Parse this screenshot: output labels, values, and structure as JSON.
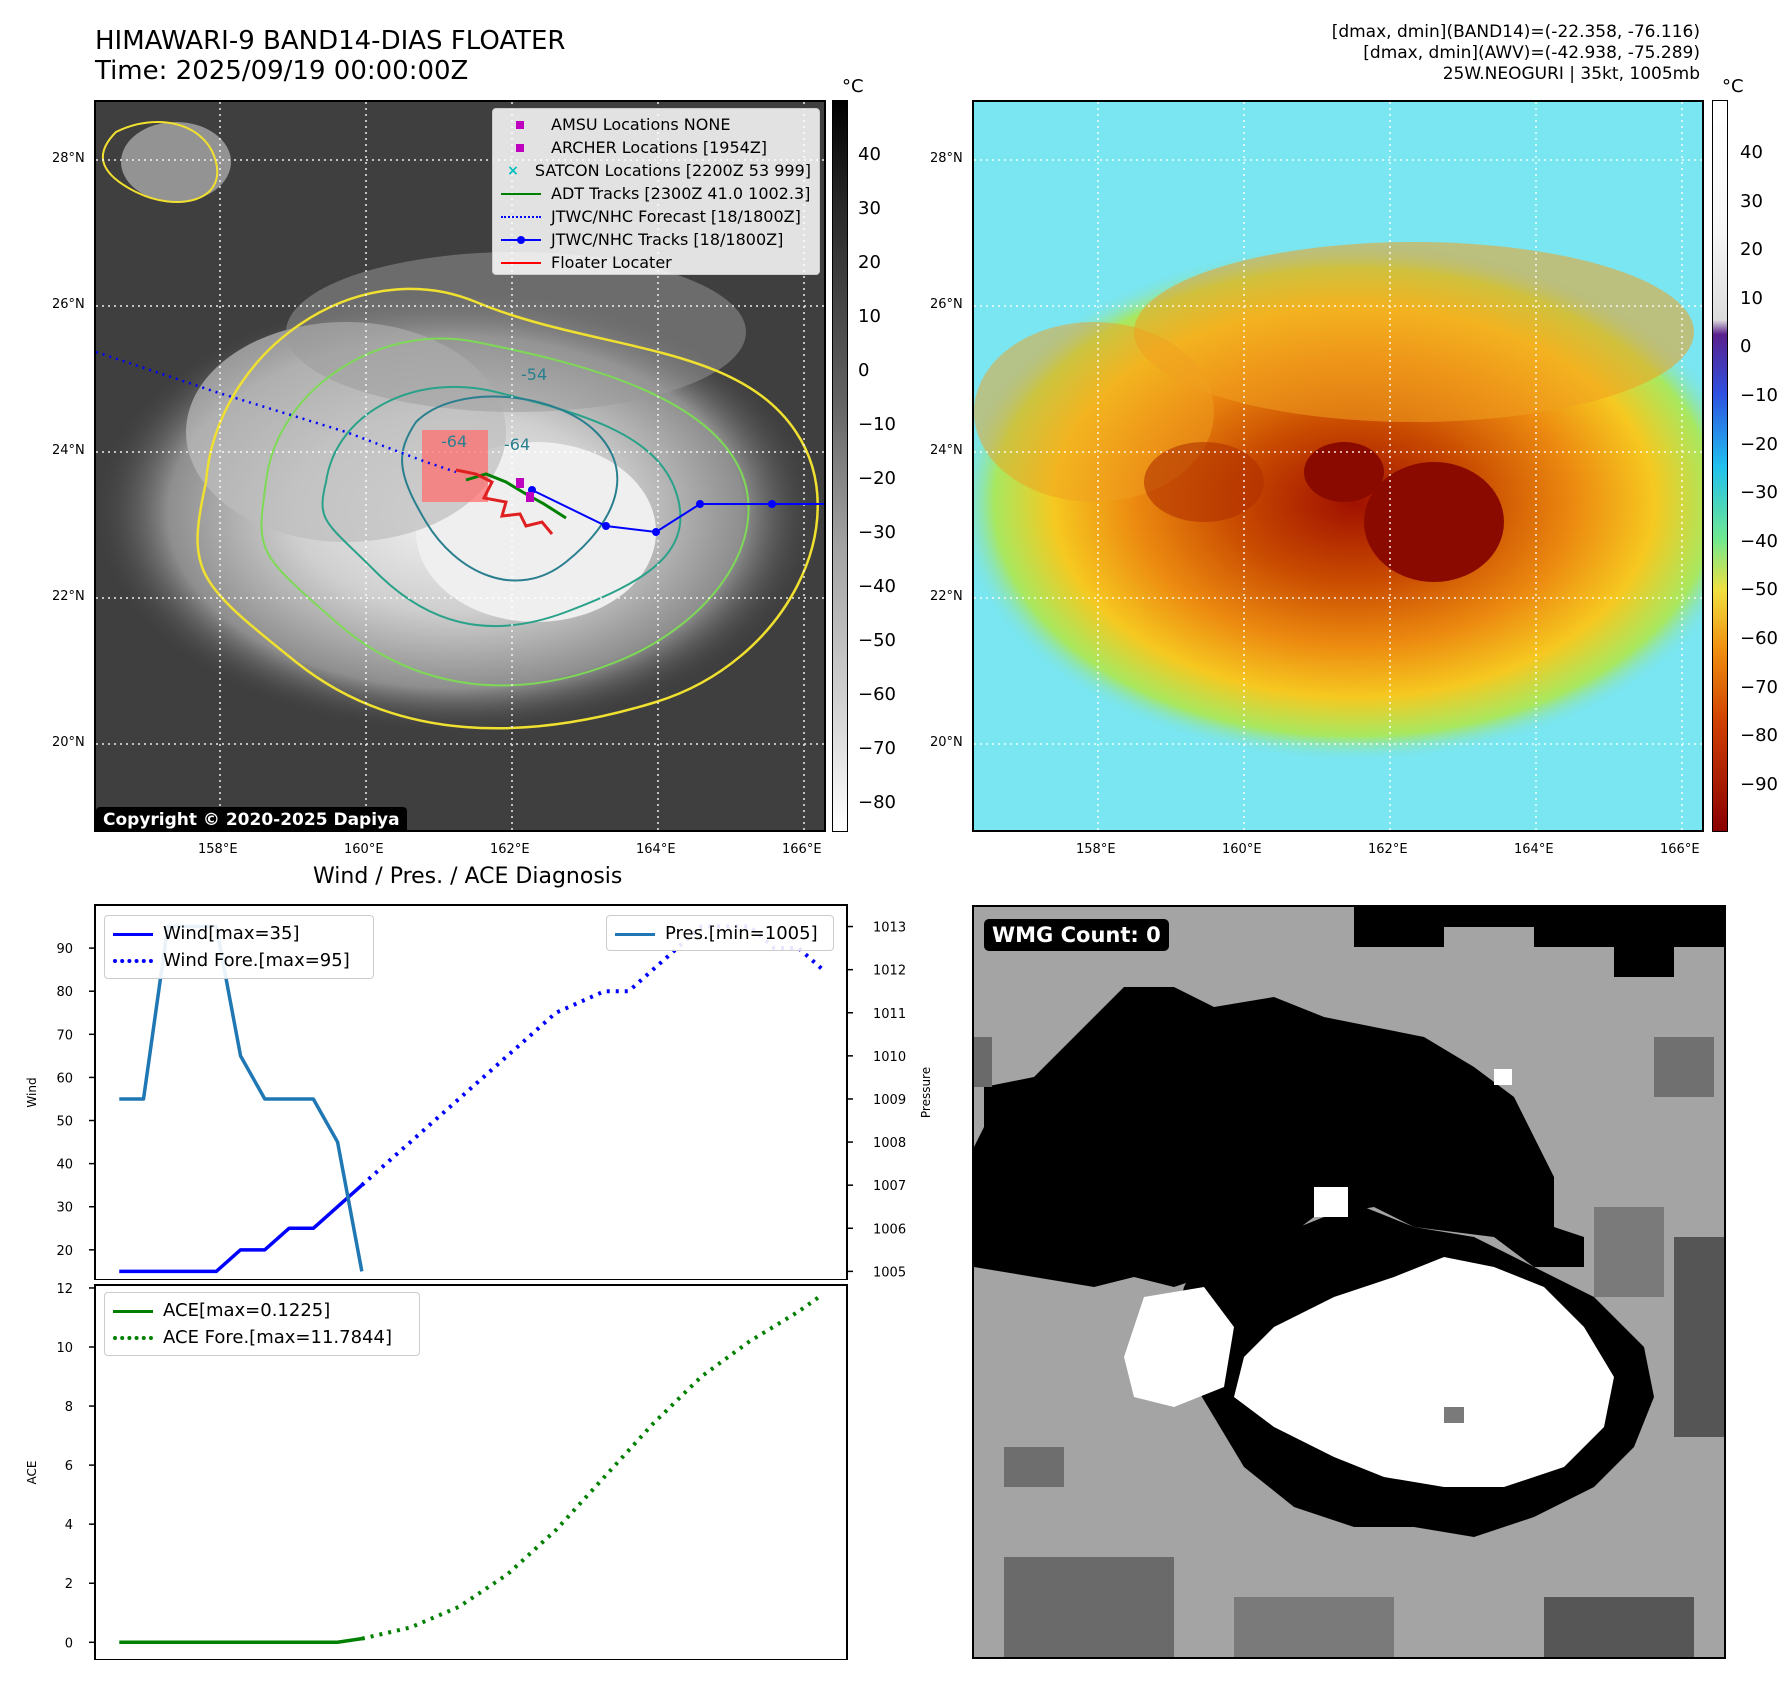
{
  "header": {
    "title_line1": "HIMAWARI-9 BAND14-DIAS FLOATER",
    "title_line2": "Time: 2025/09/19 00:00:00Z",
    "info_line1": "[dmax, dmin](BAND14)=(-22.358, -76.116)",
    "info_line2": "[dmax, dmin](AWV)=(-42.938, -75.289)",
    "info_line3": "25W.NEOGURI | 35kt, 1005mb"
  },
  "map_axes": {
    "lat_labels": [
      "28°N",
      "26°N",
      "24°N",
      "22°N",
      "20°N"
    ],
    "lon_labels": [
      "158°E",
      "160°E",
      "162°E",
      "164°E",
      "166°E"
    ]
  },
  "colorbar_ir": {
    "unit": "°C",
    "ticks": [
      "40",
      "30",
      "20",
      "10",
      "0",
      "−10",
      "−20",
      "−30",
      "−40",
      "−50",
      "−60",
      "−70",
      "−80"
    ]
  },
  "colorbar_awv": {
    "unit": "°C",
    "ticks": [
      "40",
      "30",
      "20",
      "10",
      "0",
      "−10",
      "−20",
      "−30",
      "−40",
      "−50",
      "−60",
      "−70",
      "−80",
      "−90"
    ]
  },
  "map_legend": {
    "items": [
      {
        "label": "AMSU Locations NONE",
        "color": "#bf00bf"
      },
      {
        "label": "ARCHER Locations [1954Z]",
        "color": "#bf00bf"
      },
      {
        "label": "SATCON Locations [2200Z 53 999]",
        "color": "#00bfbf"
      },
      {
        "label": "ADT Tracks [2300Z 41.0 1002.3]",
        "color": "#008000"
      },
      {
        "label": "JTWC/NHC Forecast [18/1800Z]",
        "color": "#0000ff"
      },
      {
        "label": "JTWC/NHC Tracks [18/1800Z]",
        "color": "#0000ff"
      },
      {
        "label": "Floater Locater",
        "color": "#ff0000"
      }
    ]
  },
  "contour_labels": [
    "-54",
    "-64",
    "-64"
  ],
  "copyright": "Copyright © 2020-2025 Dapiya",
  "wmg_count": "WMG Count: 0",
  "diagnosis_title": "Wind / Pres. / ACE Diagnosis",
  "chart_data": [
    {
      "type": "line",
      "title": "Wind / Pres. / ACE Diagnosis",
      "ylabel": "Wind",
      "y2label": "Pressure",
      "ylim": [
        13,
        100
      ],
      "y2lim": [
        1004.8,
        1013.5
      ],
      "yticks": [
        20,
        30,
        40,
        50,
        60,
        70,
        80,
        90
      ],
      "y2ticks": [
        1005,
        1006,
        1007,
        1008,
        1009,
        1010,
        1011,
        1012,
        1013
      ],
      "xlim": [
        -1,
        30
      ],
      "series": [
        {
          "name": "Wind[max=35]",
          "color": "#0000ff",
          "style": "solid",
          "axis": "left",
          "x": [
            0,
            1,
            2,
            3,
            4,
            5,
            6,
            7,
            8,
            9,
            10
          ],
          "values": [
            15,
            15,
            15,
            15,
            15,
            20,
            20,
            25,
            25,
            30,
            35
          ]
        },
        {
          "name": "Wind Fore.[max=95]",
          "color": "#0000ff",
          "style": "dotted",
          "axis": "left",
          "x": [
            10,
            12,
            14,
            16,
            18,
            20,
            21,
            22,
            23,
            24,
            25,
            26,
            27,
            28,
            29
          ],
          "values": [
            35,
            45,
            55,
            65,
            75,
            80,
            80,
            85,
            90,
            95,
            95,
            95,
            90,
            90,
            85
          ]
        },
        {
          "name": "Pres.[min=1005]",
          "color": "#1f77b4",
          "style": "solid",
          "axis": "right",
          "x": [
            0,
            1,
            2,
            3,
            4,
            5,
            6,
            7,
            8,
            9,
            10
          ],
          "values": [
            1009,
            1009,
            1013,
            1013,
            1013,
            1010,
            1009,
            1009,
            1009,
            1008,
            1005
          ]
        }
      ],
      "legend_left": [
        "Wind[max=35]",
        "Wind Fore.[max=95]"
      ],
      "legend_right": [
        "Pres.[min=1005]"
      ]
    },
    {
      "type": "line",
      "ylabel": "ACE",
      "ylim": [
        -0.6,
        12.1
      ],
      "yticks": [
        0,
        2,
        4,
        6,
        8,
        10,
        12
      ],
      "xlim": [
        -1,
        30
      ],
      "series": [
        {
          "name": "ACE[max=0.1225]",
          "color": "#008000",
          "style": "solid",
          "x": [
            0,
            1,
            2,
            3,
            4,
            5,
            6,
            7,
            8,
            9,
            10
          ],
          "values": [
            0,
            0,
            0,
            0,
            0,
            0,
            0,
            0,
            0,
            0,
            0.1225
          ]
        },
        {
          "name": "ACE Fore.[max=11.7844]",
          "color": "#008000",
          "style": "dotted",
          "x": [
            10,
            12,
            14,
            16,
            18,
            20,
            22,
            24,
            26,
            28,
            29
          ],
          "values": [
            0.1225,
            0.5,
            1.2,
            2.3,
            3.8,
            5.6,
            7.4,
            9.0,
            10.2,
            11.2,
            11.7844
          ]
        }
      ]
    }
  ]
}
